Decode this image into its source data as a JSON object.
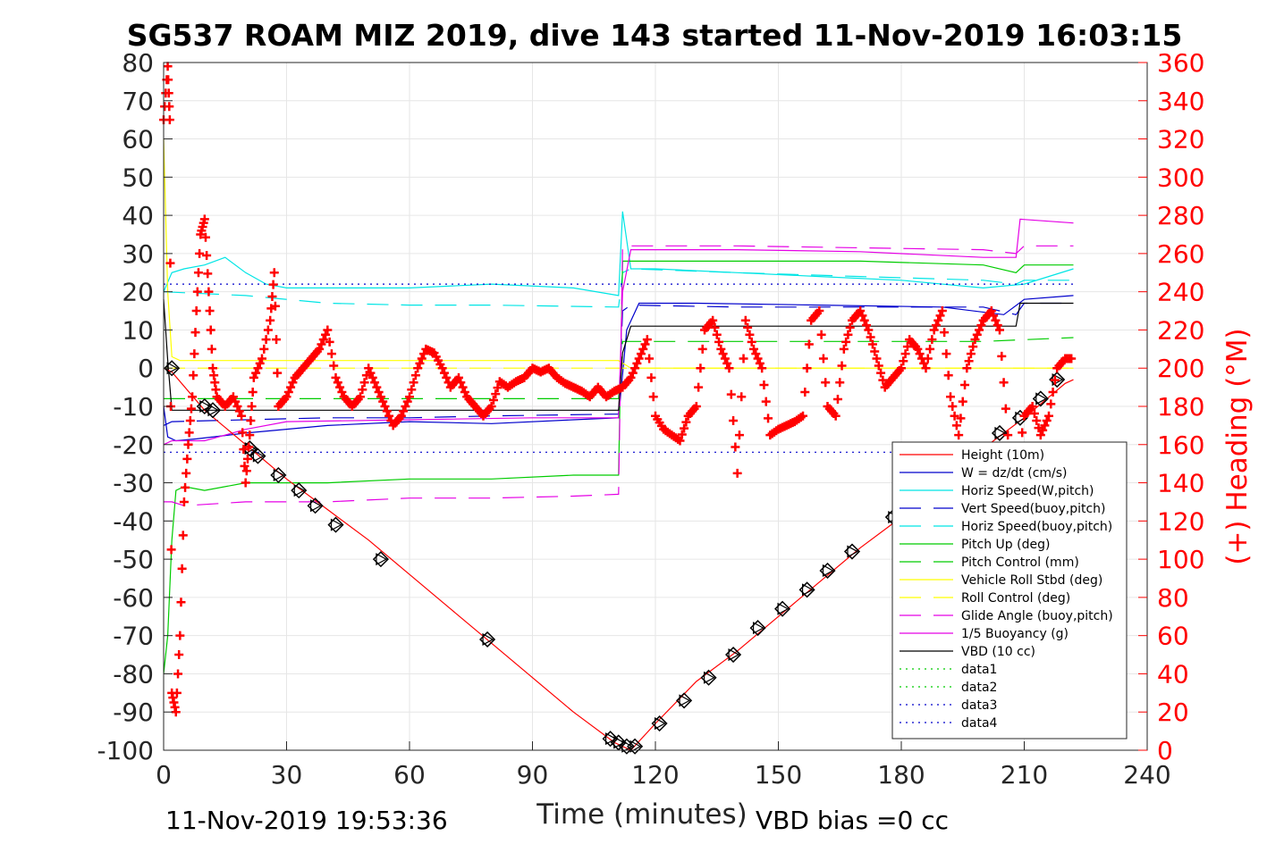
{
  "chart_data": {
    "type": "line",
    "title": "SG537 ROAM MIZ 2019, dive 143 started 11-Nov-2019 16:03:15",
    "xlabel": "Time (minutes)",
    "ylabel_right": "(+) Heading (°M)",
    "xlim": [
      0,
      240
    ],
    "ylim": [
      -100,
      80
    ],
    "ylim_right": [
      0,
      360
    ],
    "x_ticks": [
      "0",
      "30",
      "60",
      "90",
      "120",
      "150",
      "180",
      "210",
      "240"
    ],
    "y_ticks": [
      "80",
      "70",
      "60",
      "50",
      "40",
      "30",
      "20",
      "10",
      "0",
      "-10",
      "-20",
      "-30",
      "-40",
      "-50",
      "-60",
      "-70",
      "-80",
      "-90",
      "-100"
    ],
    "y_ticks_right": [
      "360",
      "340",
      "320",
      "300",
      "280",
      "260",
      "240",
      "220",
      "200",
      "180",
      "160",
      "140",
      "120",
      "100",
      "80",
      "60",
      "40",
      "20",
      "0"
    ],
    "grid": true,
    "legend_position": "bottom-right",
    "footer_left": "11-Nov-2019 19:53:36",
    "footer_right": "VBD bias =0 cc",
    "colors": {
      "red": "#ff0000",
      "blue": "#0000cc",
      "cyan": "#00e5e5",
      "green": "#00cc00",
      "yellow": "#ffff00",
      "magenta": "#e500e5",
      "black": "#000000"
    },
    "series": [
      {
        "name": "Height (10m)",
        "color": "#ff0000",
        "style": "solid"
      },
      {
        "name": "W = dz/dt (cm/s)",
        "color": "#0000cc",
        "style": "solid",
        "x": [
          0,
          1,
          3,
          8,
          20,
          40,
          60,
          80,
          100,
          111,
          113,
          116,
          130,
          160,
          190,
          205,
          210,
          222
        ],
        "y": [
          -10,
          -18,
          -19,
          -18.5,
          -17,
          -15,
          -14,
          -14.5,
          -13.5,
          -13,
          10,
          17,
          17,
          16.5,
          16,
          14,
          18,
          19
        ]
      },
      {
        "name": "Horiz Speed(W,pitch)",
        "color": "#00e5e5",
        "style": "solid",
        "x": [
          0,
          2,
          5,
          10,
          15,
          20,
          25,
          30,
          40,
          60,
          80,
          100,
          111,
          112,
          114,
          120,
          140,
          160,
          180,
          200,
          210,
          222
        ],
        "y": [
          20,
          25,
          26,
          27,
          29,
          25,
          22,
          21,
          21,
          21,
          22,
          21,
          19,
          41,
          26,
          26,
          25,
          24,
          23,
          21,
          22,
          26
        ]
      },
      {
        "name": "Vert Speed(buoy,pitch)",
        "color": "#0000cc",
        "style": "dashed",
        "x": [
          0,
          2,
          20,
          40,
          60,
          80,
          111,
          112,
          114,
          140,
          170,
          200,
          208,
          210,
          222
        ],
        "y": [
          -15,
          -14,
          -13.5,
          -13,
          -13,
          -12.5,
          -12,
          15,
          16.5,
          16,
          16,
          16,
          14,
          17,
          17
        ]
      },
      {
        "name": "Horiz Speed(buoy,pitch)",
        "color": "#00e5e5",
        "style": "dashed",
        "x": [
          0,
          20,
          40,
          60,
          80,
          111,
          112,
          114,
          140,
          170,
          200,
          208,
          210,
          222
        ],
        "y": [
          20,
          19,
          17,
          16.5,
          16.5,
          16,
          25,
          26,
          25,
          24,
          23,
          22,
          23,
          23
        ]
      },
      {
        "name": "Pitch Up (deg)",
        "color": "#00cc00",
        "style": "solid",
        "x": [
          0,
          1,
          2,
          3,
          5,
          10,
          20,
          40,
          60,
          80,
          100,
          111,
          112,
          114,
          120,
          140,
          170,
          200,
          208,
          210,
          222
        ],
        "y": [
          -80,
          -70,
          -45,
          -32,
          -31,
          -32,
          -30,
          -30,
          -29,
          -29,
          -28,
          -28,
          28,
          28,
          28,
          28,
          28,
          27,
          25,
          27,
          27
        ]
      },
      {
        "name": "Pitch Control (mm)",
        "color": "#00cc00",
        "style": "dashed",
        "x": [
          0,
          2,
          20,
          60,
          90,
          111,
          112,
          114,
          140,
          170,
          200,
          222
        ],
        "y": [
          -8,
          -8,
          -8,
          -8,
          -8,
          -8,
          7,
          7,
          7,
          7,
          7,
          8
        ]
      },
      {
        "name": "Vehicle Roll Stbd (deg)",
        "color": "#ffff00",
        "style": "solid",
        "x": [
          0,
          1,
          2,
          4,
          10,
          20,
          40,
          60,
          80,
          100,
          111,
          114,
          140,
          170,
          200,
          222
        ],
        "y": [
          60,
          20,
          3,
          2,
          2,
          2,
          2,
          2,
          2,
          2,
          2,
          0,
          0,
          0,
          0,
          0
        ]
      },
      {
        "name": "Roll Control (deg)",
        "color": "#ffff00",
        "style": "dashed",
        "x": [
          0,
          2,
          20,
          60,
          111,
          114,
          170,
          222
        ],
        "y": [
          0,
          0,
          0,
          0,
          0,
          0,
          0,
          0
        ]
      },
      {
        "name": "Glide Angle (buoy,pitch)",
        "color": "#e500e5",
        "style": "dashed",
        "x": [
          0,
          2,
          5,
          20,
          40,
          60,
          80,
          100,
          111,
          112,
          114,
          140,
          170,
          200,
          208,
          210,
          222
        ],
        "y": [
          -35,
          -35,
          -36,
          -35,
          -35,
          -34,
          -34,
          -33.5,
          -33,
          32,
          32,
          32,
          31.5,
          31,
          30,
          32,
          32
        ]
      },
      {
        "name": "1/5 Buoyancy (g)",
        "color": "#e500e5",
        "style": "solid",
        "x": [
          0,
          2,
          10,
          20,
          30,
          60,
          90,
          111,
          112,
          114,
          140,
          170,
          200,
          208,
          209,
          222
        ],
        "y": [
          -20,
          -19,
          -19,
          -16,
          -14,
          -13.5,
          -13,
          -13,
          20,
          31,
          31,
          30.5,
          29,
          29,
          39,
          38
        ]
      },
      {
        "name": "VBD (10 cc)",
        "color": "#000000",
        "style": "solid",
        "x": [
          0,
          1,
          2,
          3,
          111,
          112,
          114,
          208,
          209,
          222
        ],
        "y": [
          18,
          2,
          -11,
          -11,
          -11,
          4,
          11,
          11,
          17,
          17
        ]
      },
      {
        "name": "data1",
        "color": "#00cc00",
        "style": "dotted"
      },
      {
        "name": "data2",
        "color": "#00cc00",
        "style": "dotted"
      },
      {
        "name": "data3",
        "color": "#0000cc",
        "style": "dotted",
        "x": [
          0,
          222
        ],
        "y": [
          22,
          22
        ]
      },
      {
        "name": "data4",
        "color": "#0000cc",
        "style": "dotted",
        "x": [
          0,
          222
        ],
        "y": [
          -22,
          -22
        ]
      }
    ],
    "depth_track": {
      "x": [
        0,
        2,
        10,
        20,
        30,
        40,
        50,
        60,
        70,
        80,
        90,
        100,
        110,
        114,
        120,
        130,
        140,
        150,
        160,
        170,
        180,
        190,
        200,
        210,
        220,
        222
      ],
      "y": [
        0,
        -1,
        -11,
        -20,
        -29,
        -37,
        -45,
        -54,
        -63,
        -72,
        -81,
        -90,
        -98,
        -100,
        -93,
        -82,
        -74,
        -65,
        -56,
        -47,
        -39,
        -30,
        -21,
        -13,
        -4,
        -3
      ],
      "diamond_x": [
        2,
        10,
        12,
        21,
        23,
        28,
        33,
        37,
        42,
        53,
        79,
        109,
        111,
        113,
        115,
        121,
        127,
        133,
        139,
        145,
        151,
        157,
        162,
        168,
        178,
        204,
        209,
        214,
        218
      ],
      "diamond_y": [
        0,
        -10,
        -11,
        -21,
        -23,
        -28,
        -32,
        -36,
        -41,
        -50,
        -71,
        -97,
        -98,
        -99,
        -99,
        -93,
        -87,
        -81,
        -75,
        -68,
        -63,
        -58,
        -53,
        -48,
        -39,
        -17,
        -13,
        -8,
        -3
      ]
    },
    "heading_track": {
      "axis": "right",
      "color": "#ff0000",
      "marker": "+",
      "x": [
        0,
        1,
        1.5,
        2,
        3,
        4,
        5,
        6,
        7,
        8,
        9,
        10,
        11,
        12,
        13,
        15,
        17,
        19,
        20,
        21,
        22,
        24,
        26,
        27,
        28,
        30,
        32,
        34,
        36,
        38,
        40,
        42,
        44,
        46,
        48,
        50,
        52,
        54,
        56,
        58,
        60,
        62,
        64,
        66,
        68,
        70,
        72,
        74,
        76,
        78,
        80,
        82,
        84,
        86,
        88,
        90,
        92,
        94,
        96,
        98,
        100,
        102,
        104,
        106,
        108,
        110,
        112,
        114,
        116,
        118,
        120,
        122,
        124,
        126,
        128,
        130,
        132,
        134,
        136,
        138,
        140,
        142,
        144,
        146,
        148,
        150,
        152,
        154,
        156,
        158,
        160,
        162,
        164,
        166,
        168,
        170,
        172,
        174,
        176,
        178,
        180,
        182,
        184,
        186,
        188,
        190,
        192,
        194,
        196,
        198,
        200,
        202,
        204,
        206,
        208,
        210,
        212,
        214,
        216,
        218,
        220,
        222
      ],
      "y": [
        330,
        358,
        330,
        30,
        20,
        60,
        130,
        160,
        185,
        230,
        270,
        278,
        240,
        200,
        185,
        180,
        185,
        175,
        140,
        165,
        195,
        205,
        225,
        250,
        180,
        185,
        195,
        200,
        205,
        210,
        220,
        195,
        185,
        180,
        185,
        200,
        190,
        180,
        170,
        175,
        185,
        200,
        210,
        208,
        200,
        190,
        195,
        185,
        180,
        175,
        180,
        193,
        190,
        193,
        195,
        200,
        198,
        200,
        195,
        192,
        190,
        188,
        185,
        190,
        185,
        188,
        190,
        195,
        205,
        215,
        175,
        168,
        165,
        162,
        175,
        180,
        220,
        225,
        210,
        200,
        145,
        225,
        210,
        200,
        165,
        168,
        170,
        172,
        175,
        225,
        230,
        180,
        175,
        210,
        225,
        230,
        220,
        205,
        190,
        195,
        200,
        215,
        210,
        200,
        220,
        230,
        185,
        165,
        200,
        215,
        225,
        230,
        220,
        165,
        140,
        175,
        180,
        165,
        175,
        200,
        205,
        205
      ]
    }
  }
}
